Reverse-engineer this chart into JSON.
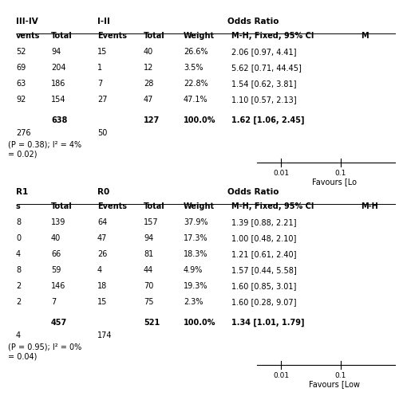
{
  "section1": {
    "header_group1": "III-IV",
    "header_group2": "I-II",
    "header_odds": "Odds Ratio",
    "subhdr": [
      "vents",
      "Total",
      "Events",
      "Total",
      "Weight",
      "M-H, Fixed, 95% CI",
      "M"
    ],
    "rows": [
      [
        "52",
        "94",
        "15",
        "40",
        "26.6%",
        "2.06 [0.97, 4.41]"
      ],
      [
        "69",
        "204",
        "1",
        "12",
        "3.5%",
        "5.62 [0.71, 44.45]"
      ],
      [
        "63",
        "186",
        "7",
        "28",
        "22.8%",
        "1.54 [0.62, 3.81]"
      ],
      [
        "92",
        "154",
        "27",
        "47",
        "47.1%",
        "1.10 [0.57, 2.13]"
      ]
    ],
    "total_row": [
      "",
      "638",
      "",
      "127",
      "100.0%",
      "1.62 [1.06, 2.45]"
    ],
    "ev1_total": "276",
    "ev2_total": "50",
    "stat1": "(P = 0.38); I² = 4%",
    "stat2": "= 0.02)",
    "axis_ticks": [
      "0.01",
      "0.1"
    ],
    "favours_label": "Favours [Lo"
  },
  "section2": {
    "header_group1": "R1",
    "header_group2": "R0",
    "header_odds": "Odds Ratio",
    "subhdr": [
      "s",
      "Total",
      "Events",
      "Total",
      "Weight",
      "M-H, Fixed, 95% CI",
      "M-H"
    ],
    "rows": [
      [
        "8",
        "139",
        "64",
        "157",
        "37.9%",
        "1.39 [0.88, 2.21]"
      ],
      [
        "0",
        "40",
        "47",
        "94",
        "17.3%",
        "1.00 [0.48, 2.10]"
      ],
      [
        "4",
        "66",
        "26",
        "81",
        "18.3%",
        "1.21 [0.61, 2.40]"
      ],
      [
        "8",
        "59",
        "4",
        "44",
        "4.9%",
        "1.57 [0.44, 5.58]"
      ],
      [
        "2",
        "146",
        "18",
        "70",
        "19.3%",
        "1.60 [0.85, 3.01]"
      ],
      [
        "2",
        "7",
        "15",
        "75",
        "2.3%",
        "1.60 [0.28, 9.07]"
      ]
    ],
    "total_row": [
      "",
      "457",
      "",
      "521",
      "100.0%",
      "1.34 [1.01, 1.79]"
    ],
    "ev1_total": "4",
    "ev2_total": "174",
    "stat1": "(P = 0.95); I² = 0%",
    "stat2": "= 0.04)",
    "axis_ticks": [
      "0.01",
      "0.1"
    ],
    "favours_label": "Favours [Low"
  },
  "bg_color": "#ffffff",
  "text_color": "#000000",
  "fs": 7.0,
  "fs_bold": 7.5
}
